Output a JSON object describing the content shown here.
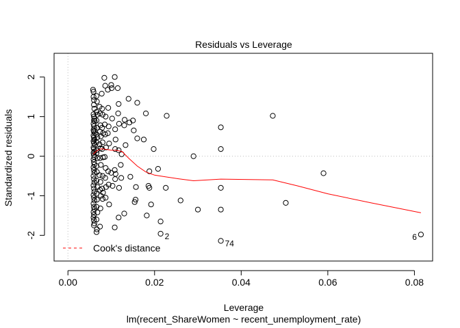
{
  "chart_data": {
    "type": "scatter",
    "title": "Residuals vs Leverage",
    "xlabel": "Leverage",
    "ylabel": "Standardized residuals",
    "subtitle": "lm(recent_ShareWomen ~ recent_unemployment_rate)",
    "xlim": [
      -0.0032,
      0.0842
    ],
    "ylim": [
      -2.65,
      2.6
    ],
    "x_ticks": [
      0.0,
      0.02,
      0.04,
      0.06,
      0.08
    ],
    "x_tick_labels": [
      "0.00",
      "0.02",
      "0.04",
      "0.06",
      "0.08"
    ],
    "y_ticks": [
      -2,
      -1,
      0,
      1,
      2
    ],
    "y_tick_labels": [
      "-2",
      "-1",
      "0",
      "1",
      "2"
    ],
    "legend": {
      "label": "Cook's distance",
      "position": "bottom-left",
      "color": "#ff0000"
    },
    "colors": {
      "points": "#000000",
      "smooth": "#ff0000",
      "reference": "#bebebe"
    },
    "labeled_points": [
      {
        "x": 0.0815,
        "y": -1.98,
        "label": "6"
      },
      {
        "x": 0.0353,
        "y": -2.14,
        "label": "74"
      },
      {
        "x": 0.0214,
        "y": -1.96,
        "label": "2"
      }
    ],
    "points": [
      [
        0.0058,
        1.68
      ],
      [
        0.0059,
        1.63
      ],
      [
        0.0059,
        1.5
      ],
      [
        0.006,
        1.42
      ],
      [
        0.006,
        1.3
      ],
      [
        0.0061,
        1.2
      ],
      [
        0.0059,
        1.06
      ],
      [
        0.006,
        1.0
      ],
      [
        0.0061,
        0.95
      ],
      [
        0.006,
        0.9
      ],
      [
        0.0062,
        0.88
      ],
      [
        0.0059,
        0.82
      ],
      [
        0.006,
        0.76
      ],
      [
        0.0061,
        0.7
      ],
      [
        0.0059,
        0.66
      ],
      [
        0.006,
        0.62
      ],
      [
        0.0062,
        0.58
      ],
      [
        0.0059,
        0.52
      ],
      [
        0.006,
        0.47
      ],
      [
        0.0061,
        0.42
      ],
      [
        0.0059,
        0.38
      ],
      [
        0.006,
        0.33
      ],
      [
        0.0062,
        0.28
      ],
      [
        0.0059,
        0.22
      ],
      [
        0.006,
        0.18
      ],
      [
        0.0061,
        0.12
      ],
      [
        0.0059,
        0.08
      ],
      [
        0.006,
        0.03
      ],
      [
        0.0061,
        -0.02
      ],
      [
        0.0059,
        -0.08
      ],
      [
        0.006,
        -0.15
      ],
      [
        0.0061,
        -0.21
      ],
      [
        0.0059,
        -0.28
      ],
      [
        0.006,
        -0.35
      ],
      [
        0.0061,
        -0.42
      ],
      [
        0.0059,
        -0.5
      ],
      [
        0.006,
        -0.58
      ],
      [
        0.0061,
        -0.66
      ],
      [
        0.0059,
        -0.74
      ],
      [
        0.006,
        -0.82
      ],
      [
        0.0061,
        -0.9
      ],
      [
        0.0059,
        -0.98
      ],
      [
        0.006,
        -1.05
      ],
      [
        0.0061,
        -1.12
      ],
      [
        0.0059,
        -1.2
      ],
      [
        0.006,
        -1.28
      ],
      [
        0.0061,
        -1.34
      ],
      [
        0.0059,
        -1.41
      ],
      [
        0.006,
        -1.48
      ],
      [
        0.0059,
        -1.55
      ],
      [
        0.006,
        -1.62
      ],
      [
        0.0061,
        -1.7
      ],
      [
        0.006,
        -1.75
      ],
      [
        0.0066,
        1.52
      ],
      [
        0.0067,
        1.38
      ],
      [
        0.0066,
        1.12
      ],
      [
        0.0068,
        1.05
      ],
      [
        0.0066,
        0.9
      ],
      [
        0.0067,
        0.72
      ],
      [
        0.0066,
        0.55
      ],
      [
        0.0068,
        0.48
      ],
      [
        0.0066,
        0.35
      ],
      [
        0.0067,
        0.15
      ],
      [
        0.0066,
        0.08
      ],
      [
        0.0068,
        -0.05
      ],
      [
        0.0066,
        -0.25
      ],
      [
        0.0067,
        -0.4
      ],
      [
        0.0066,
        -0.62
      ],
      [
        0.0068,
        -0.78
      ],
      [
        0.0066,
        -0.95
      ],
      [
        0.0067,
        -1.1
      ],
      [
        0.0066,
        -1.28
      ],
      [
        0.0068,
        -1.42
      ],
      [
        0.0066,
        -1.6
      ],
      [
        0.0067,
        -1.85
      ],
      [
        0.0066,
        -1.92
      ],
      [
        0.0073,
        1.25
      ],
      [
        0.0074,
        1.08
      ],
      [
        0.0075,
        0.78
      ],
      [
        0.0074,
        0.62
      ],
      [
        0.0076,
        0.5
      ],
      [
        0.0073,
        0.3
      ],
      [
        0.0075,
        0.2
      ],
      [
        0.0074,
        -0.05
      ],
      [
        0.0076,
        -0.22
      ],
      [
        0.0073,
        -0.48
      ],
      [
        0.0075,
        -0.65
      ],
      [
        0.0074,
        -0.85
      ],
      [
        0.0076,
        -1.0
      ],
      [
        0.0075,
        -1.32
      ],
      [
        0.0074,
        -1.78
      ],
      [
        0.0078,
        1.58
      ],
      [
        0.0079,
        1.2
      ],
      [
        0.008,
        1.05
      ],
      [
        0.0079,
        0.72
      ],
      [
        0.0081,
        0.58
      ],
      [
        0.008,
        0.35
      ],
      [
        0.0079,
        0.18
      ],
      [
        0.0081,
        -0.03
      ],
      [
        0.008,
        -0.5
      ],
      [
        0.0079,
        -0.82
      ],
      [
        0.0081,
        -0.92
      ],
      [
        0.008,
        -1.08
      ],
      [
        0.0084,
        1.98
      ],
      [
        0.0086,
        1.78
      ],
      [
        0.0087,
        1.0
      ],
      [
        0.0085,
        0.8
      ],
      [
        0.0086,
        0.55
      ],
      [
        0.0088,
        0.22
      ],
      [
        0.0085,
        -0.02
      ],
      [
        0.0087,
        -0.3
      ],
      [
        0.0086,
        -0.55
      ],
      [
        0.0088,
        -0.78
      ],
      [
        0.0087,
        -1.05
      ],
      [
        0.0092,
        1.68
      ],
      [
        0.0093,
        1.22
      ],
      [
        0.0094,
        0.75
      ],
      [
        0.0092,
        0.58
      ],
      [
        0.0095,
        0.32
      ],
      [
        0.0093,
        -0.38
      ],
      [
        0.0094,
        -0.72
      ],
      [
        0.0095,
        -1.22
      ],
      [
        0.01,
        1.8
      ],
      [
        0.0101,
        1.72
      ],
      [
        0.0102,
        0.95
      ],
      [
        0.01,
        -0.42
      ],
      [
        0.0103,
        -0.75
      ],
      [
        0.0108,
        2.0
      ],
      [
        0.0109,
        0.68
      ],
      [
        0.011,
        0.42
      ],
      [
        0.0109,
        0.18
      ],
      [
        0.0108,
        -0.35
      ],
      [
        0.011,
        -0.45
      ],
      [
        0.0109,
        -0.58
      ],
      [
        0.0108,
        -1.8
      ],
      [
        0.0115,
        1.72
      ],
      [
        0.0117,
        1.32
      ],
      [
        0.0116,
        1.08
      ],
      [
        0.0118,
        0.82
      ],
      [
        0.0117,
        0.15
      ],
      [
        0.0118,
        -0.8
      ],
      [
        0.0117,
        -1.55
      ],
      [
        0.0122,
        -0.22
      ],
      [
        0.0123,
        -0.55
      ],
      [
        0.0124,
        0.05
      ],
      [
        0.013,
        0.78
      ],
      [
        0.0131,
        0.92
      ],
      [
        0.013,
        -1.45
      ],
      [
        0.0133,
        0.28
      ],
      [
        0.014,
        1.45
      ],
      [
        0.0142,
        0.85
      ],
      [
        0.0144,
        -0.52
      ],
      [
        0.015,
        0.9
      ],
      [
        0.0152,
        0.65
      ],
      [
        0.0154,
        -1.16
      ],
      [
        0.0156,
        -1.1
      ],
      [
        0.0157,
        -0.78
      ],
      [
        0.016,
        0.45
      ],
      [
        0.016,
        1.35
      ],
      [
        0.0175,
        0.42
      ],
      [
        0.018,
        1.08
      ],
      [
        0.0182,
        -1.5
      ],
      [
        0.0188,
        -0.38
      ],
      [
        0.0186,
        -0.75
      ],
      [
        0.0188,
        -0.8
      ],
      [
        0.0192,
        -1.22
      ],
      [
        0.0198,
        0.18
      ],
      [
        0.0208,
        -0.32
      ],
      [
        0.0214,
        -1.65
      ],
      [
        0.0214,
        -1.96
      ],
      [
        0.0228,
        1.02
      ],
      [
        0.0226,
        -0.8
      ],
      [
        0.026,
        -1.12
      ],
      [
        0.029,
        0.0
      ],
      [
        0.03,
        -1.35
      ],
      [
        0.0353,
        0.73
      ],
      [
        0.0353,
        0.18
      ],
      [
        0.0353,
        -0.8
      ],
      [
        0.0353,
        -1.35
      ],
      [
        0.0353,
        -2.14
      ],
      [
        0.0473,
        1.02
      ],
      [
        0.0503,
        -1.18
      ],
      [
        0.059,
        -0.43
      ],
      [
        0.0815,
        -1.98
      ]
    ],
    "cooks_smooth": [
      [
        0.0058,
        0.05
      ],
      [
        0.0068,
        0.15
      ],
      [
        0.0078,
        0.19
      ],
      [
        0.009,
        0.17
      ],
      [
        0.01,
        0.15
      ],
      [
        0.011,
        0.15
      ],
      [
        0.0125,
        0.12
      ],
      [
        0.014,
        -0.05
      ],
      [
        0.016,
        -0.25
      ],
      [
        0.018,
        -0.4
      ],
      [
        0.02,
        -0.48
      ],
      [
        0.0225,
        -0.52
      ],
      [
        0.0255,
        -0.57
      ],
      [
        0.029,
        -0.62
      ],
      [
        0.0353,
        -0.58
      ],
      [
        0.0473,
        -0.6
      ],
      [
        0.053,
        -0.75
      ],
      [
        0.06,
        -0.95
      ],
      [
        0.07,
        -1.18
      ],
      [
        0.0815,
        -1.43
      ]
    ]
  }
}
